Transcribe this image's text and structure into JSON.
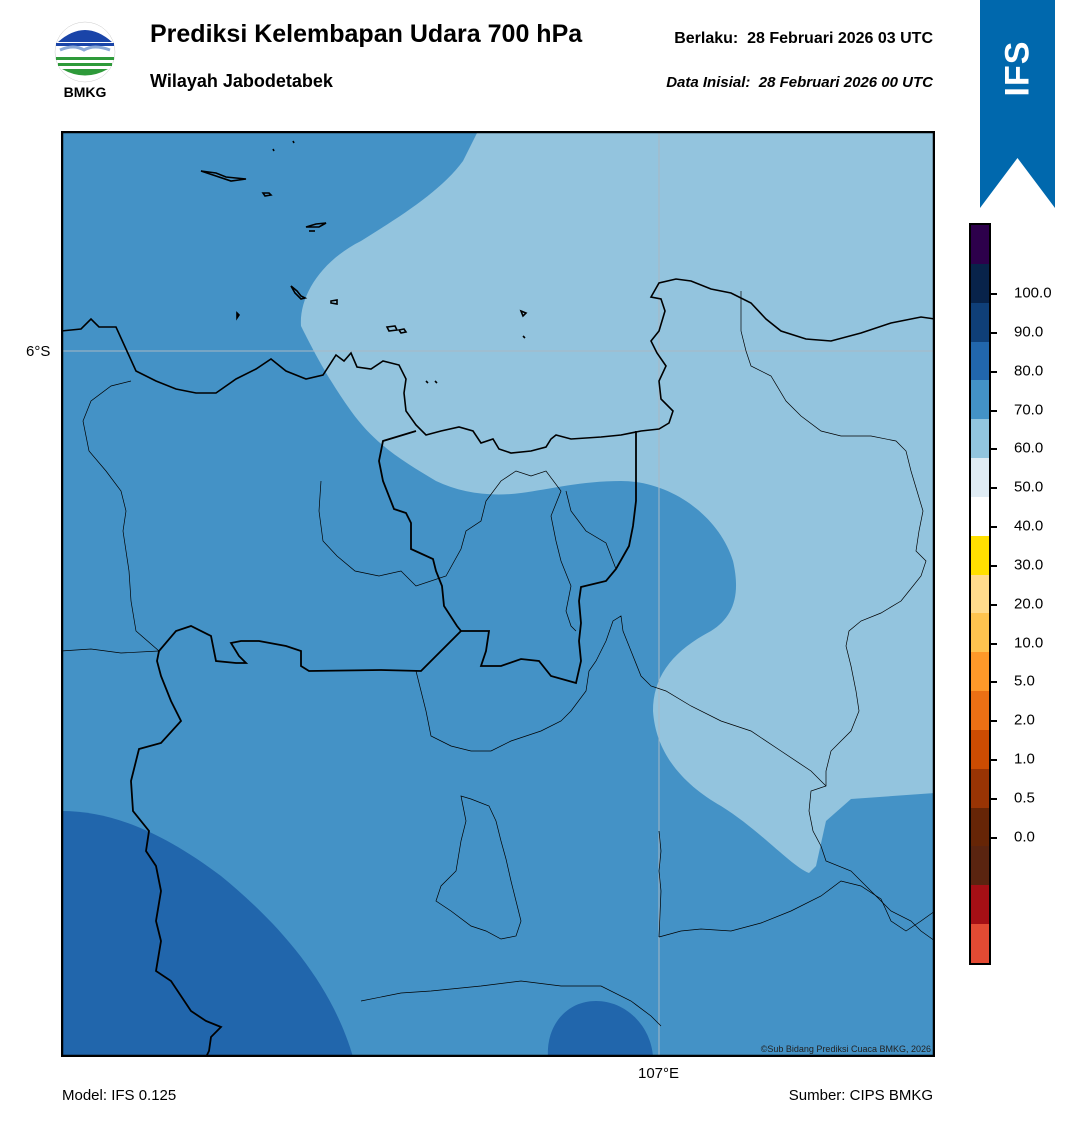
{
  "header": {
    "logo_text": "BMKG",
    "title": "Prediksi Kelembapan Udara 700 hPa",
    "subtitle": "Wilayah Jabodetabek",
    "valid_label": "Berlaku:",
    "valid_time": "28 Februari 2026 03 UTC",
    "init_label": "Data Inisial:",
    "init_time": "28 Februari 2026 00 UTC"
  },
  "ribbon": {
    "label": "IFS",
    "color": "#0068ad"
  },
  "map": {
    "lat_label": "6°S",
    "lon_label": "107°E",
    "credit": "©Sub Bidang Prediksi Cuaca BMKG, 2026",
    "fill_colors": {
      "light": "#93c4de",
      "mid": "#4492c6",
      "dark": "#2166ac"
    }
  },
  "colorbar": {
    "labels": [
      "100.0",
      "90.0",
      "80.0",
      "70.0",
      "60.0",
      "50.0",
      "40.0",
      "30.0",
      "20.0",
      "10.0",
      "5.0",
      "2.0",
      "1.0",
      "0.5",
      "0.0"
    ],
    "colors_top_to_bottom": [
      "#2d004b",
      "#08234a",
      "#0f3f78",
      "#2166ac",
      "#4392c6",
      "#92c5de",
      "#e0ecf4",
      "#ffffff",
      "#ffe000",
      "#ffdb8c",
      "#fec44f",
      "#fe9929",
      "#ec7014",
      "#cc4c02",
      "#993404",
      "#662506",
      "#5a2410",
      "#a50f15",
      "#e34a33"
    ]
  },
  "footer": {
    "model": "Model: IFS 0.125",
    "source": "Sumber: CIPS BMKG"
  }
}
